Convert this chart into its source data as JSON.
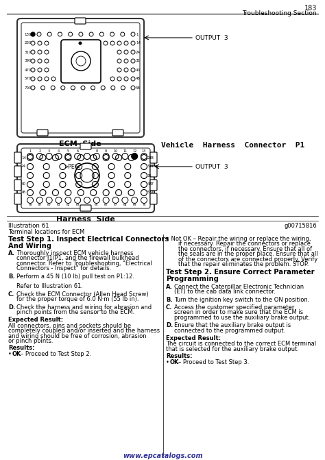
{
  "page_number": "183",
  "page_header": "Troubleshooting Section",
  "bg_color": "#ffffff",
  "illustration_label": "Illustration 61",
  "illustration_id": "g00715816",
  "illustration_caption": "Terminal locations for ECM",
  "ecm_side_label": "ECM  Side",
  "harness_side_label": "Harness  Side",
  "vehicle_harness_label": "Vehicle  Harness  Connector  P1",
  "output3_label": "OUTPUT  3",
  "title1_line1": "Test Step 1. Inspect Electrical Connectors",
  "title1_line2": "And Wiring",
  "title2_line1": "Test Step 2. Ensure Correct Parameter",
  "title2_line2": "Programming",
  "left_steps": [
    {
      "label": "A.",
      "lines": [
        "Thoroughly inspect ECM vehicle harness",
        "connector J1/P1, and the firewall bulkhead",
        "connector. Refer to Troubleshooting, \"Electrical",
        "Connectors - Inspect\" for details."
      ]
    },
    {
      "label": "B.",
      "lines": [
        "Perform a 45 N (10 lb) pull test on P1:12.",
        "",
        "Refer to Illustration 61."
      ]
    },
    {
      "label": "C.",
      "lines": [
        "Check the ECM Connector (Allen Head Screw)",
        "for the proper torque of 6.0 N·m (55 lb in)."
      ]
    },
    {
      "label": "D.",
      "lines": [
        "Check the harness and wiring for abrasion and",
        "pinch points from the sensor to the ECM."
      ]
    }
  ],
  "left_expected_result_lines": [
    "All connectors, pins and sockets should be",
    "completely coupled and/or inserted and the harness",
    "and wiring should be free of corrosion, abrasion",
    "or pinch points."
  ],
  "left_result_bullet": "OK – Proceed to Test Step 2.",
  "right_not_ok_lines": [
    "Not OK – Repair the wiring or replace the wiring,",
    "if necessary. Repair the connectors or replace",
    "the connectors, if necessary. Ensure that all of",
    "the seals are in the proper place. Ensure that all",
    "of the connectors are connected properly. Verify",
    "that the repair eliminates the problem. STOP."
  ],
  "right_steps": [
    {
      "label": "A.",
      "lines": [
        "Connect the Caterpillar Electronic Technician",
        "(ET) to the cab data link connector."
      ]
    },
    {
      "label": "B.",
      "lines": [
        "Turn the ignition key switch to the ON position."
      ]
    },
    {
      "label": "C.",
      "lines": [
        "Access the customer specified parameter",
        "screen in order to make sure that the ECM is",
        "programmed to use the auxiliary brake output."
      ]
    },
    {
      "label": "D.",
      "lines": [
        "Ensure that the auxiliary brake output is",
        "connected to the programmed output."
      ]
    }
  ],
  "right_expected_result_lines": [
    "The circuit is connected to the correct ECM terminal",
    "that is selected for the auxiliary brake output."
  ],
  "right_result_bullet": "OK – Proceed to Test Step 3.",
  "website": "www.epcatalogs.com"
}
